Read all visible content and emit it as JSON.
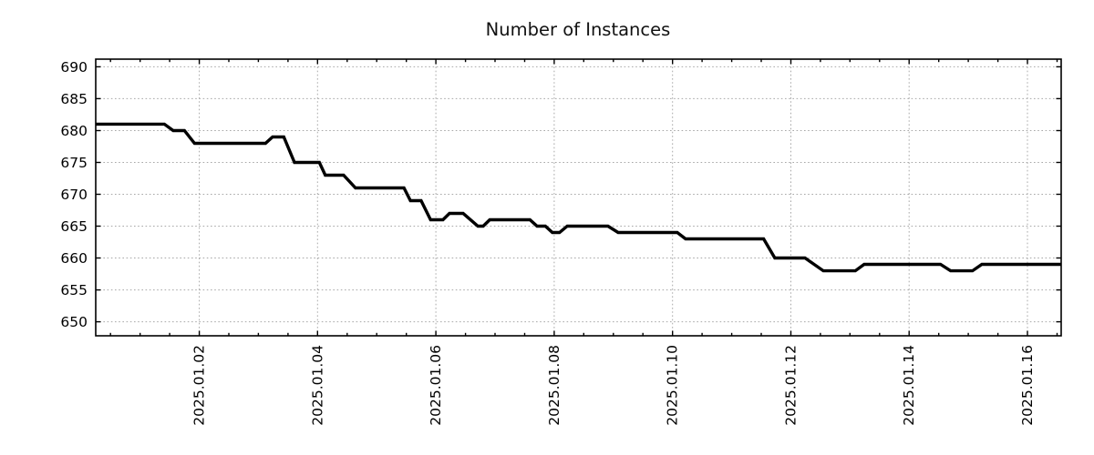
{
  "chart_data": {
    "type": "line",
    "title": "Number of Instances",
    "legend": "none",
    "grid": "dotted",
    "x_axis": {
      "tick_labels": [
        "2025.01.02",
        "2025.01.04",
        "2025.01.06",
        "2025.01.08",
        "2025.01.10",
        "2025.01.12",
        "2025.01.14",
        "2025.01.16"
      ],
      "tick_positions_days": [
        1,
        3,
        5,
        7,
        9,
        11,
        13,
        15
      ],
      "days_reference": "days after 2025.01.01 00:00",
      "minor_tick_interval_days": 0.5,
      "xlim_days": [
        -0.75,
        15.57
      ]
    },
    "y_axis": {
      "ticks": [
        650,
        655,
        660,
        665,
        670,
        675,
        680,
        685,
        690
      ],
      "ylim": [
        647.8,
        691.2
      ]
    },
    "series": [
      {
        "name": "instances",
        "color": "#000000",
        "points": [
          [
            -0.75,
            681
          ],
          [
            0.41,
            681
          ],
          [
            0.56,
            680
          ],
          [
            0.75,
            680
          ],
          [
            0.92,
            678
          ],
          [
            2.12,
            678
          ],
          [
            2.24,
            679
          ],
          [
            2.43,
            679
          ],
          [
            2.61,
            675
          ],
          [
            3.03,
            675
          ],
          [
            3.13,
            673
          ],
          [
            3.44,
            673
          ],
          [
            3.64,
            671
          ],
          [
            4.46,
            671
          ],
          [
            4.57,
            669
          ],
          [
            4.75,
            669
          ],
          [
            4.91,
            666
          ],
          [
            5.12,
            666
          ],
          [
            5.23,
            667
          ],
          [
            5.46,
            667
          ],
          [
            5.71,
            665
          ],
          [
            5.8,
            665
          ],
          [
            5.91,
            666
          ],
          [
            6.59,
            666
          ],
          [
            6.71,
            665
          ],
          [
            6.85,
            665
          ],
          [
            6.97,
            664
          ],
          [
            7.09,
            664
          ],
          [
            7.22,
            665
          ],
          [
            7.91,
            665
          ],
          [
            8.08,
            664
          ],
          [
            9.08,
            664
          ],
          [
            9.22,
            663
          ],
          [
            10.54,
            663
          ],
          [
            10.73,
            660
          ],
          [
            11.24,
            660
          ],
          [
            11.55,
            658
          ],
          [
            12.09,
            658
          ],
          [
            12.24,
            659
          ],
          [
            13.53,
            659
          ],
          [
            13.7,
            658
          ],
          [
            14.07,
            658
          ],
          [
            14.23,
            659
          ],
          [
            15.57,
            659
          ]
        ]
      }
    ],
    "colors": {
      "line": "#000000",
      "grid": "#a8a8a8",
      "border": "#000000",
      "background": "#ffffff"
    }
  }
}
